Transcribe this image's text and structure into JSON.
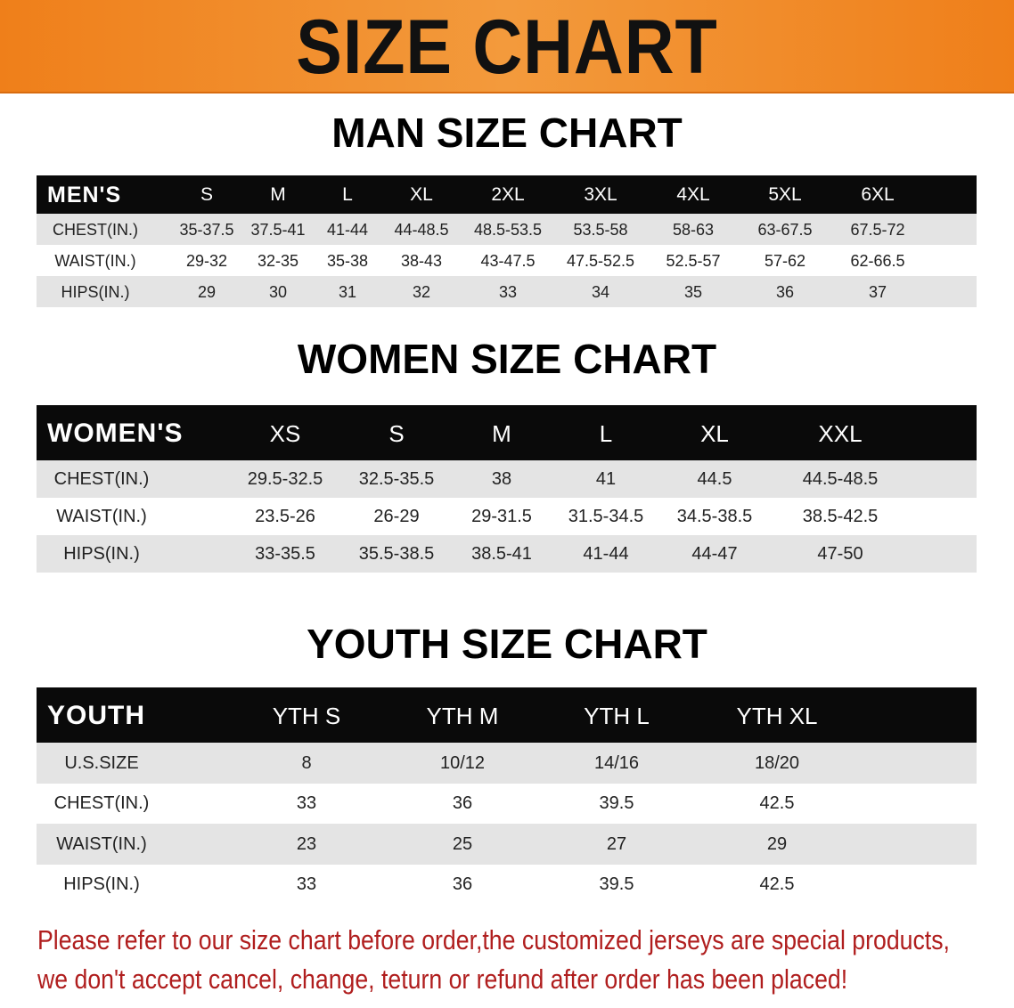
{
  "banner_title": "SIZE CHART",
  "tables": [
    {
      "title": "MAN SIZE CHART",
      "header_label": "MEN'S",
      "sizes": [
        "S",
        "M",
        "L",
        "XL",
        "2XL",
        "3XL",
        "4XL",
        "5XL",
        "6XL"
      ],
      "rows": [
        {
          "label": "CHEST(IN.)",
          "values": [
            "35-37.5",
            "37.5-41",
            "41-44",
            "44-48.5",
            "48.5-53.5",
            "53.5-58",
            "58-63",
            "63-67.5",
            "67.5-72"
          ]
        },
        {
          "label": "WAIST(IN.)",
          "values": [
            "29-32",
            "32-35",
            "35-38",
            "38-43",
            "43-47.5",
            "47.5-52.5",
            "52.5-57",
            "57-62",
            "62-66.5"
          ]
        },
        {
          "label": "HIPS(IN.)",
          "values": [
            "29",
            "30",
            "31",
            "32",
            "33",
            "34",
            "35",
            "36",
            "37"
          ]
        }
      ]
    },
    {
      "title": "WOMEN SIZE CHART",
      "header_label": "WOMEN'S",
      "sizes": [
        "XS",
        "S",
        "M",
        "L",
        "XL",
        "XXL"
      ],
      "rows": [
        {
          "label": "CHEST(IN.)",
          "values": [
            "29.5-32.5",
            "32.5-35.5",
            "38",
            "41",
            "44.5",
            "44.5-48.5"
          ]
        },
        {
          "label": "WAIST(IN.)",
          "values": [
            "23.5-26",
            "26-29",
            "29-31.5",
            "31.5-34.5",
            "34.5-38.5",
            "38.5-42.5"
          ]
        },
        {
          "label": "HIPS(IN.)",
          "values": [
            "33-35.5",
            "35.5-38.5",
            "38.5-41",
            "41-44",
            "44-47",
            "47-50"
          ]
        }
      ]
    },
    {
      "title": "YOUTH SIZE CHART",
      "header_label": "YOUTH",
      "sizes": [
        "YTH S",
        "YTH M",
        "YTH L",
        "YTH XL"
      ],
      "rows": [
        {
          "label": "U.S.SIZE",
          "values": [
            "8",
            "10/12",
            "14/16",
            "18/20"
          ]
        },
        {
          "label": "CHEST(IN.)",
          "values": [
            "33",
            "36",
            "39.5",
            "42.5"
          ]
        },
        {
          "label": "WAIST(IN.)",
          "values": [
            "23",
            "25",
            "27",
            "29"
          ]
        },
        {
          "label": "HIPS(IN.)",
          "values": [
            "33",
            "36",
            "39.5",
            "42.5"
          ]
        }
      ]
    }
  ],
  "notice": [
    "Please refer to our size chart before order,the customized jerseys are special products,",
    "we don't accept cancel, change, teturn or refund after order has been placed!"
  ],
  "colors": {
    "banner": "#ef7f1a",
    "header": "#0a0a0a",
    "notice": "#b01e1e",
    "row_gray": "#e4e4e4"
  }
}
